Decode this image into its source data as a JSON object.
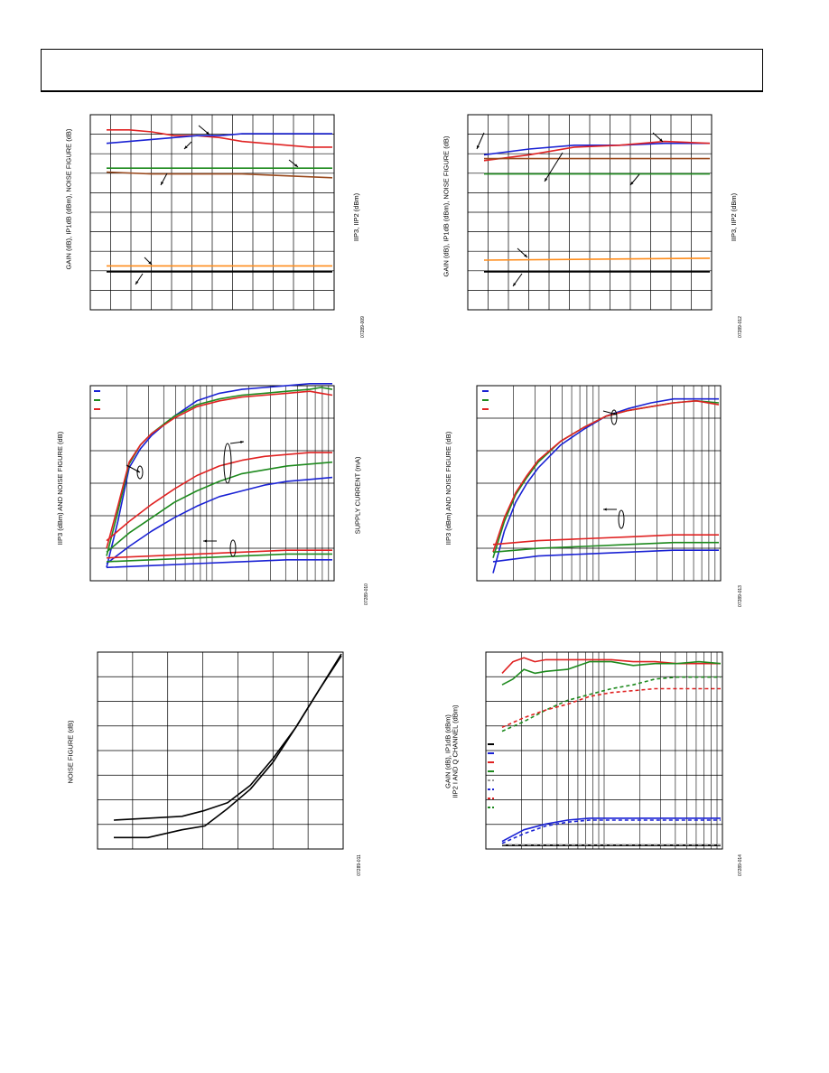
{
  "colors": {
    "blue": "#1a22d4",
    "green": "#1e8a1e",
    "red": "#e02222",
    "brown": "#9a4a1e",
    "orange": "#ff8c1a",
    "black": "#000000",
    "gray": "#9a9a9a"
  },
  "panels": [
    {
      "id": "fig9",
      "ylabel": "GAIN (dB), IP1dB (dBm), NOISE FIGURE (dB)",
      "y2label": "IIP3, IIP2 (dBm)",
      "figid": "07289-009"
    },
    {
      "id": "fig12",
      "ylabel": "GAIN (dB), IP1dB (dBm), NOISE FIGURE (dB)",
      "y2label": "IIP3, IIP2 (dBm)",
      "figid": "07289-012"
    },
    {
      "id": "fig10",
      "ylabel": "IIP3 (dBm) AND NOISE FIGURE (dB)",
      "y2label": "SUPPLY CURRENT (mA)",
      "figid": "07289-010"
    },
    {
      "id": "fig13",
      "ylabel": "IIP3 (dBm) AND NOISE FIGURE (dB)",
      "y2label": "",
      "figid": "07289-013"
    },
    {
      "id": "fig11",
      "ylabel": "NOISE FIGURE (dB)",
      "y2label": "",
      "figid": "07289-011"
    },
    {
      "id": "fig14",
      "ylabel": "GAIN (dB), IP1dB (dBm)\nIIP2 I AND Q CHANNEL (dBm)",
      "y2label": "",
      "figid": "07289-014"
    }
  ],
  "chart_data": [
    {
      "type": "line",
      "title": "",
      "xlabel": "",
      "ylabel": "GAIN (dB), IP1dB (dBm), NOISE FIGURE (dB)",
      "y2label": "IIP3, IIP2 (dBm)",
      "xlim": [
        0,
        100
      ],
      "ylim": [
        0,
        100
      ],
      "grid": true,
      "series": [
        {
          "color": "red",
          "x": [
            0,
            10,
            20,
            30,
            40,
            50,
            60,
            70,
            80,
            90,
            100
          ],
          "y": [
            93,
            93,
            92,
            90,
            90,
            89,
            87,
            86,
            85,
            84,
            84
          ]
        },
        {
          "color": "blue",
          "x": [
            0,
            10,
            20,
            30,
            40,
            50,
            60,
            70,
            80,
            90,
            100
          ],
          "y": [
            86,
            87,
            88,
            89,
            90,
            90,
            91,
            91,
            91,
            91,
            91
          ]
        },
        {
          "color": "green",
          "x": [
            0,
            100
          ],
          "y": [
            73,
            73
          ]
        },
        {
          "color": "brown",
          "x": [
            0,
            20,
            40,
            60,
            80,
            100
          ],
          "y": [
            71,
            70,
            70,
            70,
            69,
            68
          ]
        },
        {
          "color": "orange",
          "x": [
            0,
            100
          ],
          "y": [
            22,
            22
          ]
        },
        {
          "color": "black",
          "x": [
            0,
            100
          ],
          "y": [
            19,
            19
          ]
        }
      ]
    },
    {
      "type": "line",
      "title": "",
      "xlabel": "",
      "ylabel": "GAIN (dB), IP1dB (dBm), NOISE FIGURE (dB)",
      "y2label": "IIP3, IIP2 (dBm)",
      "xlim": [
        0,
        100
      ],
      "ylim": [
        0,
        100
      ],
      "grid": true,
      "series": [
        {
          "color": "blue",
          "x": [
            0,
            20,
            40,
            60,
            80,
            100
          ],
          "y": [
            80,
            83,
            85,
            85,
            86,
            86
          ]
        },
        {
          "color": "red",
          "x": [
            0,
            20,
            40,
            60,
            80,
            100
          ],
          "y": [
            77,
            80,
            84,
            85,
            87,
            86
          ]
        },
        {
          "color": "brown",
          "x": [
            0,
            100
          ],
          "y": [
            78,
            78
          ]
        },
        {
          "color": "green",
          "x": [
            0,
            100
          ],
          "y": [
            70,
            70
          ]
        },
        {
          "color": "orange",
          "x": [
            0,
            100
          ],
          "y": [
            25,
            26
          ]
        },
        {
          "color": "black",
          "x": [
            0,
            100
          ],
          "y": [
            19,
            19
          ]
        }
      ]
    },
    {
      "type": "line",
      "title": "",
      "xlabel": "",
      "ylabel": "IIP3 (dBm) AND NOISE FIGURE (dB)",
      "y2label": "SUPPLY CURRENT (mA)",
      "xlim": [
        0,
        100
      ],
      "ylim": [
        0,
        100
      ],
      "grid": true,
      "legend": "top-left",
      "series": [
        {
          "color": "blue",
          "x": [
            0,
            5,
            10,
            15,
            20,
            30,
            40,
            50,
            60,
            70,
            80,
            90,
            95,
            100
          ],
          "y": [
            6,
            30,
            58,
            68,
            75,
            85,
            93,
            97,
            99,
            100,
            101,
            102,
            102,
            102
          ]
        },
        {
          "color": "green",
          "x": [
            0,
            5,
            10,
            15,
            20,
            30,
            40,
            50,
            60,
            70,
            80,
            90,
            95,
            100
          ],
          "y": [
            12,
            35,
            60,
            70,
            76,
            85,
            91,
            94,
            96,
            97,
            98,
            99,
            100,
            99
          ]
        },
        {
          "color": "red",
          "x": [
            0,
            5,
            10,
            15,
            20,
            30,
            40,
            50,
            60,
            70,
            80,
            90,
            95,
            100
          ],
          "y": [
            16,
            38,
            61,
            70,
            76,
            84,
            90,
            93,
            95,
            96,
            97,
            98,
            97,
            96
          ]
        },
        {
          "color": "red",
          "x": [
            0,
            10,
            20,
            30,
            40,
            50,
            60,
            70,
            80,
            90,
            100
          ],
          "y": [
            20,
            30,
            39,
            47,
            54,
            59,
            62,
            64,
            65,
            66,
            66
          ]
        },
        {
          "color": "green",
          "x": [
            0,
            10,
            20,
            30,
            40,
            50,
            60,
            70,
            80,
            90,
            100
          ],
          "y": [
            14,
            24,
            32,
            40,
            46,
            51,
            55,
            57,
            59,
            60,
            61
          ]
        },
        {
          "color": "blue",
          "x": [
            0,
            10,
            20,
            30,
            40,
            50,
            60,
            70,
            80,
            90,
            100
          ],
          "y": [
            8,
            17,
            25,
            32,
            38,
            43,
            46,
            49,
            51,
            52,
            53
          ]
        },
        {
          "color": "red",
          "x": [
            0,
            20,
            40,
            60,
            80,
            100
          ],
          "y": [
            11,
            12,
            13,
            14,
            15,
            15
          ]
        },
        {
          "color": "green",
          "x": [
            0,
            20,
            40,
            60,
            80,
            100
          ],
          "y": [
            9,
            10,
            11,
            12,
            13,
            13
          ]
        },
        {
          "color": "blue",
          "x": [
            0,
            20,
            40,
            60,
            80,
            100
          ],
          "y": [
            6,
            7,
            8,
            9,
            10,
            10
          ]
        }
      ]
    },
    {
      "type": "line",
      "title": "",
      "xlabel": "",
      "ylabel": "IIP3 (dBm) AND NOISE FIGURE (dB)",
      "xlim": [
        0,
        100
      ],
      "ylim": [
        0,
        100
      ],
      "grid": true,
      "legend": "top-left",
      "series": [
        {
          "color": "blue",
          "x": [
            0,
            5,
            10,
            15,
            20,
            30,
            40,
            50,
            60,
            70,
            80,
            90,
            100
          ],
          "y": [
            3,
            25,
            40,
            50,
            58,
            70,
            78,
            85,
            89,
            92,
            94,
            94,
            94
          ]
        },
        {
          "color": "green",
          "x": [
            0,
            5,
            10,
            15,
            20,
            30,
            40,
            50,
            60,
            70,
            80,
            90,
            100
          ],
          "y": [
            11,
            30,
            44,
            53,
            61,
            72,
            79,
            85,
            88,
            90,
            92,
            93,
            92
          ]
        },
        {
          "color": "red",
          "x": [
            0,
            5,
            10,
            15,
            20,
            30,
            40,
            50,
            60,
            70,
            80,
            90,
            100
          ],
          "y": [
            14,
            32,
            45,
            54,
            62,
            72,
            79,
            85,
            88,
            90,
            92,
            93,
            91
          ]
        },
        {
          "color": "red",
          "x": [
            0,
            20,
            40,
            60,
            80,
            100
          ],
          "y": [
            18,
            20,
            21,
            22,
            23,
            23
          ]
        },
        {
          "color": "green",
          "x": [
            0,
            20,
            40,
            60,
            80,
            100
          ],
          "y": [
            14,
            16,
            17,
            18,
            19,
            19
          ]
        },
        {
          "color": "blue",
          "x": [
            0,
            20,
            40,
            60,
            80,
            100
          ],
          "y": [
            9,
            12,
            13,
            14,
            15,
            15
          ]
        }
      ]
    },
    {
      "type": "line",
      "title": "",
      "xlabel": "",
      "ylabel": "NOISE FIGURE (dB)",
      "xlim": [
        0,
        100
      ],
      "ylim": [
        0,
        100
      ],
      "grid": true,
      "series": [
        {
          "color": "black",
          "x": [
            0,
            15,
            30,
            40,
            50,
            60,
            70,
            80,
            90,
            100
          ],
          "y": [
            14,
            15,
            16,
            19,
            23,
            32,
            46,
            62,
            81,
            100
          ]
        },
        {
          "color": "black",
          "x": [
            0,
            15,
            30,
            40,
            50,
            60,
            70,
            80,
            90,
            100
          ],
          "y": [
            5,
            5,
            9,
            11,
            20,
            30,
            44,
            62,
            81,
            99
          ]
        }
      ]
    },
    {
      "type": "line",
      "title": "",
      "xlabel": "",
      "ylabel": "GAIN (dB), IP1dB (dBm)\nIIP2 I AND Q CHANNEL (dBm)",
      "xlim": [
        0,
        100
      ],
      "ylim": [
        0,
        100
      ],
      "grid": true,
      "legend": "center-left",
      "series": [
        {
          "color": "red",
          "x": [
            0,
            5,
            10,
            15,
            20,
            30,
            40,
            50,
            60,
            70,
            80,
            90,
            100
          ],
          "y": [
            90,
            96,
            98,
            96,
            97,
            97,
            97,
            97,
            96,
            96,
            95,
            95,
            95
          ]
        },
        {
          "color": "green",
          "x": [
            0,
            5,
            10,
            15,
            20,
            30,
            40,
            50,
            60,
            70,
            80,
            90,
            100
          ],
          "y": [
            84,
            87,
            92,
            90,
            91,
            92,
            96,
            96,
            94,
            95,
            95,
            96,
            95
          ]
        },
        {
          "color": "green",
          "x": [
            0,
            10,
            20,
            30,
            40,
            50,
            60,
            70,
            80,
            90,
            100
          ],
          "y": [
            60,
            65,
            71,
            76,
            79,
            82,
            84,
            87,
            88,
            88,
            88
          ],
          "dash": true
        },
        {
          "color": "red",
          "x": [
            0,
            10,
            20,
            30,
            40,
            50,
            60,
            70,
            80,
            90,
            100
          ],
          "y": [
            62,
            67,
            71,
            74,
            78,
            80,
            81,
            82,
            82,
            82,
            82
          ],
          "dash": true
        },
        {
          "color": "blue",
          "x": [
            0,
            10,
            20,
            30,
            40,
            50,
            60,
            70,
            80,
            90,
            100
          ],
          "y": [
            3,
            9,
            12,
            14,
            15,
            15,
            15,
            15,
            15,
            15,
            15
          ]
        },
        {
          "color": "blue",
          "x": [
            0,
            10,
            20,
            30,
            40,
            50,
            60,
            70,
            80,
            90,
            100
          ],
          "y": [
            2,
            7,
            11,
            13,
            14,
            14,
            14,
            14,
            14,
            14,
            14
          ],
          "dash": true
        },
        {
          "color": "black",
          "x": [
            0,
            100
          ],
          "y": [
            1,
            1
          ]
        },
        {
          "color": "gray",
          "x": [
            0,
            100
          ],
          "y": [
            1.3,
            1.3
          ],
          "dash": true
        }
      ]
    }
  ]
}
